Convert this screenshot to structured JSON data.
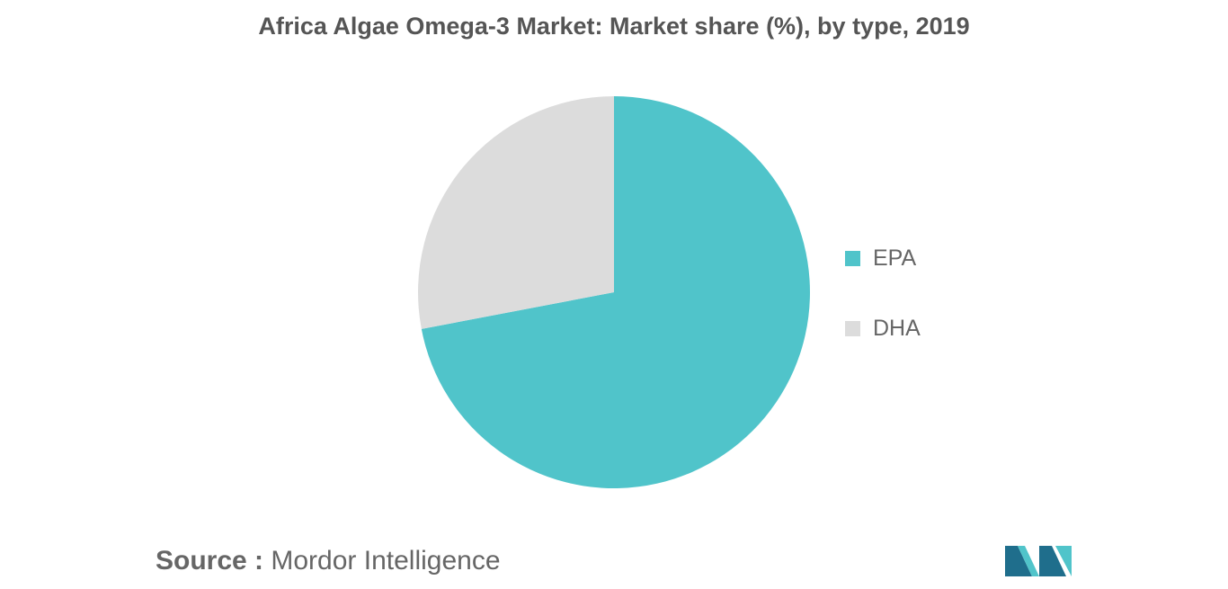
{
  "chart_data": {
    "type": "pie",
    "title": "Africa Algae Omega-3 Market: Market share (%), by type, 2019",
    "categories": [
      "EPA",
      "DHA"
    ],
    "values": [
      72,
      28
    ],
    "colors": [
      "#50C4CA",
      "#DCDCDC"
    ],
    "legend_position": "right"
  },
  "source": {
    "label": "Source :",
    "text": "Mordor Intelligence"
  },
  "logo": {
    "icon": "mordor-intelligence-logo-icon",
    "colors": [
      "#1F6E8C",
      "#50C4CA"
    ]
  }
}
